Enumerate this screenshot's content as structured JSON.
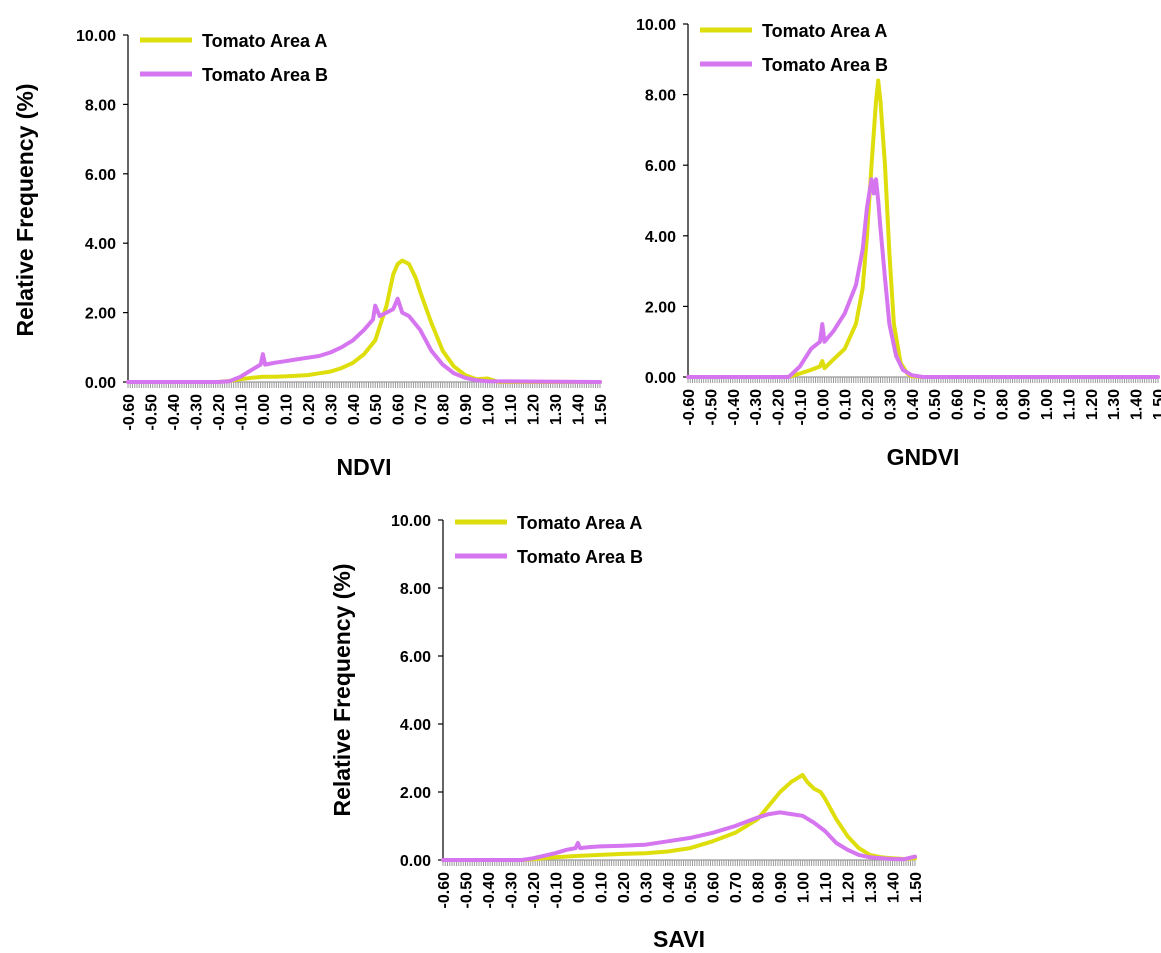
{
  "colors": {
    "series_a": "#dede0c",
    "series_b": "#d675f0",
    "axis": "#000000",
    "tick_marks": "#9a9a9a"
  },
  "chart_data": [
    {
      "type": "line",
      "title": "",
      "xlabel": "NDVI",
      "ylabel": "Relative Frequency  (%)",
      "xlim": [
        -0.6,
        1.5
      ],
      "ylim": [
        0,
        10
      ],
      "x_tick_labels": [
        "-0.60",
        "-0.50",
        "-0.40",
        "-0.30",
        "-0.20",
        "-0.10",
        "0.00",
        "0.10",
        "0.20",
        "0.30",
        "0.40",
        "0.50",
        "0.60",
        "0.70",
        "0.80",
        "0.90",
        "1.00",
        "1.10",
        "1.20",
        "1.30",
        "1.40",
        "1.50"
      ],
      "y_tick_labels": [
        "0.00",
        "2.00",
        "4.00",
        "6.00",
        "8.00",
        "10.00"
      ],
      "grid": false,
      "legend_position": "top-left",
      "series": [
        {
          "name": "Tomato Area A",
          "color": "#dede0c",
          "x": [
            -0.6,
            -0.2,
            -0.15,
            -0.1,
            -0.05,
            0.0,
            0.05,
            0.1,
            0.15,
            0.2,
            0.25,
            0.3,
            0.35,
            0.4,
            0.45,
            0.5,
            0.55,
            0.58,
            0.6,
            0.62,
            0.65,
            0.68,
            0.7,
            0.75,
            0.8,
            0.85,
            0.9,
            0.95,
            1.0,
            1.05,
            1.5
          ],
          "y": [
            0,
            0,
            0.03,
            0.08,
            0.12,
            0.15,
            0.15,
            0.16,
            0.18,
            0.2,
            0.25,
            0.3,
            0.4,
            0.55,
            0.8,
            1.2,
            2.2,
            3.1,
            3.4,
            3.5,
            3.4,
            3.0,
            2.6,
            1.7,
            0.9,
            0.45,
            0.2,
            0.08,
            0.1,
            0,
            0
          ]
        },
        {
          "name": "Tomato Area B",
          "color": "#d675f0",
          "x": [
            -0.6,
            -0.2,
            -0.15,
            -0.1,
            -0.05,
            -0.01,
            0.0,
            0.01,
            0.05,
            0.1,
            0.15,
            0.2,
            0.25,
            0.3,
            0.35,
            0.4,
            0.45,
            0.49,
            0.5,
            0.52,
            0.55,
            0.58,
            0.6,
            0.62,
            0.65,
            0.7,
            0.75,
            0.8,
            0.85,
            0.9,
            0.95,
            1.0,
            1.5
          ],
          "y": [
            0,
            0,
            0.02,
            0.15,
            0.35,
            0.5,
            0.8,
            0.5,
            0.55,
            0.6,
            0.65,
            0.7,
            0.75,
            0.85,
            1.0,
            1.2,
            1.5,
            1.8,
            2.2,
            1.9,
            2.0,
            2.1,
            2.4,
            2.0,
            1.9,
            1.5,
            0.9,
            0.5,
            0.25,
            0.12,
            0.05,
            0.02,
            0
          ]
        }
      ]
    },
    {
      "type": "line",
      "title": "",
      "xlabel": "GNDVI",
      "ylabel": "",
      "xlim": [
        -0.6,
        1.5
      ],
      "ylim": [
        0,
        10
      ],
      "x_tick_labels": [
        "-0.60",
        "-0.50",
        "-0.40",
        "-0.30",
        "-0.20",
        "-0.10",
        "0.00",
        "0.10",
        "0.20",
        "0.30",
        "0.40",
        "0.50",
        "0.60",
        "0.70",
        "0.80",
        "0.90",
        "1.00",
        "1.10",
        "1.20",
        "1.30",
        "1.40",
        "1.50"
      ],
      "y_tick_labels": [
        "0.00",
        "2.00",
        "4.00",
        "6.00",
        "8.00",
        "10.00"
      ],
      "grid": false,
      "legend_position": "top-left",
      "series": [
        {
          "name": "Tomato Area A",
          "color": "#dede0c",
          "x": [
            -0.6,
            -0.15,
            -0.1,
            -0.05,
            -0.01,
            0.0,
            0.01,
            0.05,
            0.1,
            0.15,
            0.18,
            0.2,
            0.22,
            0.24,
            0.25,
            0.26,
            0.28,
            0.3,
            0.32,
            0.35,
            0.38,
            0.4,
            0.45,
            1.5
          ],
          "y": [
            0,
            0,
            0.1,
            0.2,
            0.3,
            0.45,
            0.25,
            0.5,
            0.8,
            1.5,
            2.5,
            4.0,
            6.0,
            7.8,
            8.4,
            7.8,
            6.0,
            3.5,
            1.5,
            0.4,
            0.1,
            0.02,
            0,
            0
          ]
        },
        {
          "name": "Tomato Area B",
          "color": "#d675f0",
          "x": [
            -0.6,
            -0.15,
            -0.1,
            -0.05,
            -0.01,
            0.0,
            0.01,
            0.05,
            0.1,
            0.15,
            0.18,
            0.2,
            0.22,
            0.23,
            0.24,
            0.25,
            0.26,
            0.28,
            0.3,
            0.33,
            0.36,
            0.4,
            0.45,
            1.5
          ],
          "y": [
            0,
            0,
            0.3,
            0.8,
            1.0,
            1.5,
            1.0,
            1.3,
            1.8,
            2.6,
            3.6,
            4.8,
            5.6,
            5.2,
            5.6,
            5.0,
            4.2,
            2.8,
            1.5,
            0.6,
            0.2,
            0.05,
            0,
            0
          ]
        }
      ]
    },
    {
      "type": "line",
      "title": "",
      "xlabel": "SAVI",
      "ylabel": "Relative Frequency  (%)",
      "xlim": [
        -0.6,
        1.5
      ],
      "ylim": [
        0,
        10
      ],
      "x_tick_labels": [
        "-0.60",
        "-0.50",
        "-0.40",
        "-0.30",
        "-0.20",
        "-0.10",
        "0.00",
        "0.10",
        "0.20",
        "0.30",
        "0.40",
        "0.50",
        "0.60",
        "0.70",
        "0.80",
        "0.90",
        "1.00",
        "1.10",
        "1.20",
        "1.30",
        "1.40",
        "1.50"
      ],
      "y_tick_labels": [
        "0.00",
        "2.00",
        "4.00",
        "6.00",
        "8.00",
        "10.00"
      ],
      "grid": false,
      "legend_position": "top-left",
      "series": [
        {
          "name": "Tomato Area A",
          "color": "#dede0c",
          "x": [
            -0.6,
            -0.25,
            -0.2,
            -0.1,
            0.0,
            0.1,
            0.2,
            0.3,
            0.4,
            0.5,
            0.6,
            0.7,
            0.8,
            0.85,
            0.9,
            0.95,
            1.0,
            1.02,
            1.05,
            1.08,
            1.1,
            1.15,
            1.2,
            1.25,
            1.3,
            1.35,
            1.4,
            1.45,
            1.5
          ],
          "y": [
            0,
            0,
            0.02,
            0.08,
            0.12,
            0.15,
            0.18,
            0.2,
            0.25,
            0.35,
            0.55,
            0.8,
            1.2,
            1.6,
            2.0,
            2.3,
            2.5,
            2.3,
            2.1,
            2.0,
            1.8,
            1.2,
            0.7,
            0.35,
            0.15,
            0.08,
            0.05,
            0.03,
            0.05
          ]
        },
        {
          "name": "Tomato Area B",
          "color": "#d675f0",
          "x": [
            -0.6,
            -0.25,
            -0.2,
            -0.1,
            -0.05,
            -0.01,
            0.0,
            0.01,
            0.05,
            0.1,
            0.2,
            0.3,
            0.4,
            0.5,
            0.6,
            0.7,
            0.8,
            0.85,
            0.9,
            0.95,
            1.0,
            1.05,
            1.1,
            1.15,
            1.2,
            1.25,
            1.3,
            1.35,
            1.4,
            1.45,
            1.5
          ],
          "y": [
            0,
            0,
            0.05,
            0.2,
            0.3,
            0.35,
            0.5,
            0.35,
            0.38,
            0.4,
            0.42,
            0.45,
            0.55,
            0.65,
            0.8,
            1.0,
            1.25,
            1.35,
            1.4,
            1.35,
            1.3,
            1.1,
            0.85,
            0.5,
            0.3,
            0.15,
            0.08,
            0.05,
            0.03,
            0.02,
            0.1
          ]
        }
      ]
    }
  ]
}
